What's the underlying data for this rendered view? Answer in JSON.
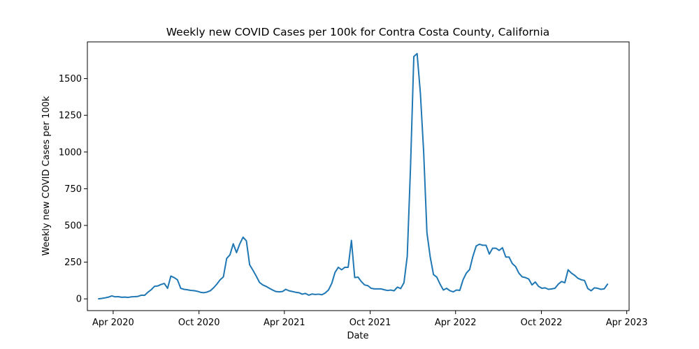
{
  "chart_data": {
    "type": "line",
    "title": "Weekly new COVID Cases per 100k for Contra Costa County, California",
    "xlabel": "Date",
    "ylabel": "Weekly new COVID Cases per 100k",
    "x_type": "date",
    "xlim": [
      "2020-02-06",
      "2023-04-06"
    ],
    "ylim": [
      -80,
      1750
    ],
    "x_ticks": [
      {
        "date": "2020-04-01",
        "label": "Apr 2020"
      },
      {
        "date": "2020-10-01",
        "label": "Oct 2020"
      },
      {
        "date": "2021-04-01",
        "label": "Apr 2021"
      },
      {
        "date": "2021-10-01",
        "label": "Oct 2021"
      },
      {
        "date": "2022-04-01",
        "label": "Apr 2022"
      },
      {
        "date": "2022-10-01",
        "label": "Oct 2022"
      },
      {
        "date": "2023-04-01",
        "label": "Apr 2023"
      }
    ],
    "y_ticks": [
      0,
      250,
      500,
      750,
      1000,
      1250,
      1500
    ],
    "grid": false,
    "series": [
      {
        "color": "#1f77b4",
        "points": [
          [
            "2020-03-01",
            0
          ],
          [
            "2020-03-08",
            3
          ],
          [
            "2020-03-15",
            7
          ],
          [
            "2020-03-22",
            12
          ],
          [
            "2020-03-29",
            20
          ],
          [
            "2020-04-05",
            14
          ],
          [
            "2020-04-12",
            15
          ],
          [
            "2020-04-19",
            11
          ],
          [
            "2020-04-26",
            12
          ],
          [
            "2020-05-03",
            10
          ],
          [
            "2020-05-10",
            14
          ],
          [
            "2020-05-17",
            15
          ],
          [
            "2020-05-24",
            17
          ],
          [
            "2020-05-31",
            25
          ],
          [
            "2020-06-07",
            24
          ],
          [
            "2020-06-14",
            45
          ],
          [
            "2020-06-21",
            62
          ],
          [
            "2020-06-28",
            85
          ],
          [
            "2020-07-05",
            88
          ],
          [
            "2020-07-12",
            98
          ],
          [
            "2020-07-19",
            105
          ],
          [
            "2020-07-26",
            72
          ],
          [
            "2020-08-02",
            155
          ],
          [
            "2020-08-09",
            145
          ],
          [
            "2020-08-16",
            130
          ],
          [
            "2020-08-23",
            72
          ],
          [
            "2020-08-30",
            65
          ],
          [
            "2020-09-06",
            62
          ],
          [
            "2020-09-13",
            58
          ],
          [
            "2020-09-20",
            56
          ],
          [
            "2020-09-27",
            52
          ],
          [
            "2020-10-04",
            45
          ],
          [
            "2020-10-11",
            42
          ],
          [
            "2020-10-18",
            46
          ],
          [
            "2020-10-25",
            55
          ],
          [
            "2020-11-01",
            75
          ],
          [
            "2020-11-08",
            100
          ],
          [
            "2020-11-15",
            130
          ],
          [
            "2020-11-22",
            150
          ],
          [
            "2020-11-29",
            275
          ],
          [
            "2020-12-06",
            300
          ],
          [
            "2020-12-13",
            375
          ],
          [
            "2020-12-20",
            315
          ],
          [
            "2020-12-27",
            375
          ],
          [
            "2021-01-03",
            420
          ],
          [
            "2021-01-10",
            395
          ],
          [
            "2021-01-17",
            232
          ],
          [
            "2021-01-24",
            195
          ],
          [
            "2021-01-31",
            155
          ],
          [
            "2021-02-07",
            112
          ],
          [
            "2021-02-14",
            95
          ],
          [
            "2021-02-21",
            85
          ],
          [
            "2021-02-28",
            72
          ],
          [
            "2021-03-07",
            60
          ],
          [
            "2021-03-14",
            50
          ],
          [
            "2021-03-21",
            48
          ],
          [
            "2021-03-28",
            50
          ],
          [
            "2021-04-04",
            65
          ],
          [
            "2021-04-11",
            55
          ],
          [
            "2021-04-18",
            50
          ],
          [
            "2021-04-25",
            45
          ],
          [
            "2021-05-02",
            42
          ],
          [
            "2021-05-09",
            32
          ],
          [
            "2021-05-16",
            37
          ],
          [
            "2021-05-23",
            25
          ],
          [
            "2021-05-30",
            33
          ],
          [
            "2021-06-06",
            30
          ],
          [
            "2021-06-13",
            32
          ],
          [
            "2021-06-20",
            28
          ],
          [
            "2021-06-27",
            40
          ],
          [
            "2021-07-04",
            60
          ],
          [
            "2021-07-11",
            105
          ],
          [
            "2021-07-18",
            180
          ],
          [
            "2021-07-25",
            215
          ],
          [
            "2021-08-01",
            198
          ],
          [
            "2021-08-08",
            215
          ],
          [
            "2021-08-15",
            215
          ],
          [
            "2021-08-22",
            398
          ],
          [
            "2021-08-29",
            145
          ],
          [
            "2021-09-05",
            148
          ],
          [
            "2021-09-12",
            118
          ],
          [
            "2021-09-19",
            95
          ],
          [
            "2021-09-26",
            90
          ],
          [
            "2021-10-03",
            72
          ],
          [
            "2021-10-10",
            68
          ],
          [
            "2021-10-17",
            68
          ],
          [
            "2021-10-24",
            68
          ],
          [
            "2021-10-31",
            62
          ],
          [
            "2021-11-07",
            57
          ],
          [
            "2021-11-14",
            60
          ],
          [
            "2021-11-21",
            55
          ],
          [
            "2021-11-28",
            80
          ],
          [
            "2021-12-05",
            70
          ],
          [
            "2021-12-12",
            110
          ],
          [
            "2021-12-19",
            290
          ],
          [
            "2021-12-26",
            900
          ],
          [
            "2022-01-02",
            1650
          ],
          [
            "2022-01-09",
            1670
          ],
          [
            "2022-01-16",
            1400
          ],
          [
            "2022-01-23",
            1000
          ],
          [
            "2022-01-30",
            450
          ],
          [
            "2022-02-06",
            285
          ],
          [
            "2022-02-13",
            165
          ],
          [
            "2022-02-20",
            148
          ],
          [
            "2022-02-27",
            100
          ],
          [
            "2022-03-06",
            60
          ],
          [
            "2022-03-13",
            72
          ],
          [
            "2022-03-20",
            55
          ],
          [
            "2022-03-27",
            48
          ],
          [
            "2022-04-03",
            60
          ],
          [
            "2022-04-10",
            58
          ],
          [
            "2022-04-17",
            130
          ],
          [
            "2022-04-24",
            175
          ],
          [
            "2022-05-01",
            200
          ],
          [
            "2022-05-08",
            290
          ],
          [
            "2022-05-15",
            360
          ],
          [
            "2022-05-22",
            372
          ],
          [
            "2022-05-29",
            365
          ],
          [
            "2022-06-05",
            365
          ],
          [
            "2022-06-12",
            305
          ],
          [
            "2022-06-19",
            345
          ],
          [
            "2022-06-26",
            345
          ],
          [
            "2022-07-03",
            330
          ],
          [
            "2022-07-10",
            348
          ],
          [
            "2022-07-17",
            285
          ],
          [
            "2022-07-24",
            285
          ],
          [
            "2022-07-31",
            240
          ],
          [
            "2022-08-07",
            220
          ],
          [
            "2022-08-14",
            175
          ],
          [
            "2022-08-21",
            150
          ],
          [
            "2022-08-28",
            145
          ],
          [
            "2022-09-04",
            135
          ],
          [
            "2022-09-11",
            95
          ],
          [
            "2022-09-18",
            115
          ],
          [
            "2022-09-25",
            85
          ],
          [
            "2022-10-02",
            72
          ],
          [
            "2022-10-09",
            75
          ],
          [
            "2022-10-16",
            65
          ],
          [
            "2022-10-23",
            68
          ],
          [
            "2022-10-30",
            72
          ],
          [
            "2022-11-06",
            100
          ],
          [
            "2022-11-13",
            118
          ],
          [
            "2022-11-20",
            110
          ],
          [
            "2022-11-27",
            198
          ],
          [
            "2022-12-04",
            175
          ],
          [
            "2022-12-11",
            160
          ],
          [
            "2022-12-18",
            140
          ],
          [
            "2022-12-25",
            130
          ],
          [
            "2023-01-01",
            125
          ],
          [
            "2023-01-08",
            70
          ],
          [
            "2023-01-15",
            55
          ],
          [
            "2023-01-22",
            75
          ],
          [
            "2023-01-29",
            72
          ],
          [
            "2023-02-05",
            65
          ],
          [
            "2023-02-12",
            68
          ],
          [
            "2023-02-19",
            100
          ]
        ]
      }
    ]
  }
}
